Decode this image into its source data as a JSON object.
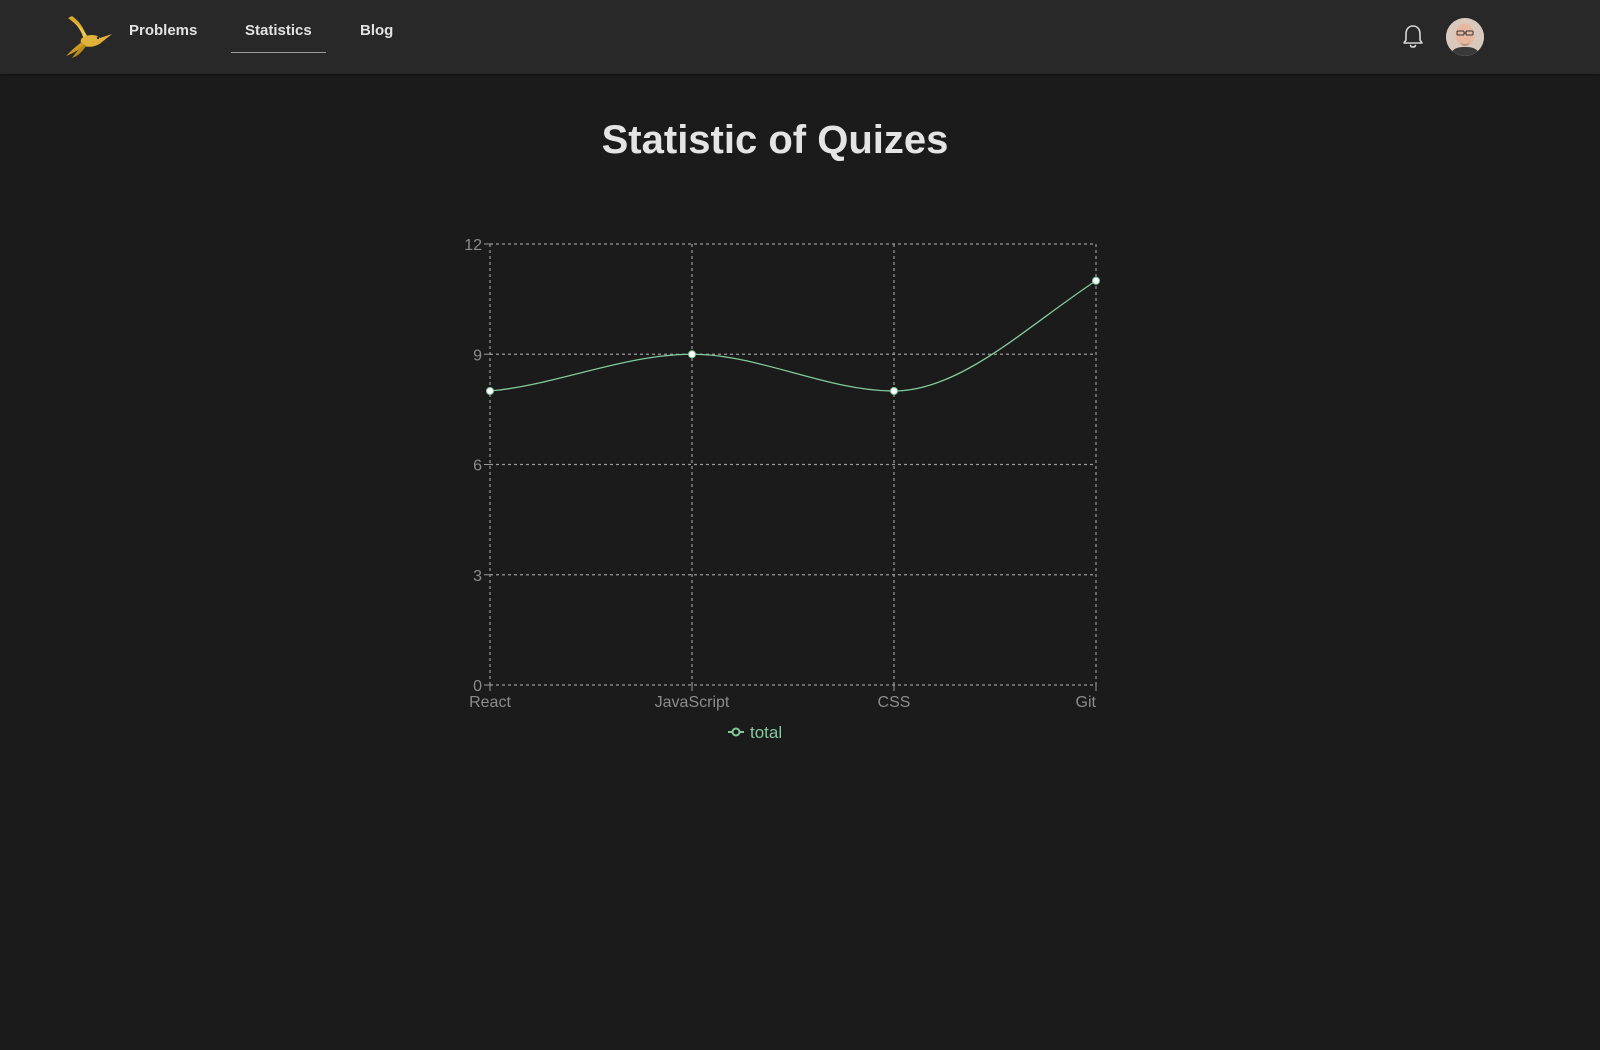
{
  "nav": {
    "links": [
      {
        "label": "Problems",
        "active": false
      },
      {
        "label": "Statistics",
        "active": true
      },
      {
        "label": "Blog",
        "active": false
      }
    ],
    "icons": {
      "logo": "hummingbird-logo",
      "notifications": "bell-icon",
      "profile": "user-avatar"
    }
  },
  "page": {
    "title": "Statistic of Quizes"
  },
  "colors": {
    "background": "#1b1b1b",
    "navbar": "#282828",
    "series": "#82ca9d",
    "grid": "#9a9a9a",
    "logo": "#d9a92a"
  },
  "chart_data": {
    "type": "line",
    "categories": [
      "React",
      "JavaScript",
      "CSS",
      "Git"
    ],
    "series": [
      {
        "name": "total",
        "values": [
          8,
          9,
          8,
          11
        ],
        "color": "#82ca9d"
      }
    ],
    "ylim": [
      0,
      12
    ],
    "yticks": [
      "0",
      "3",
      "6",
      "9",
      "12"
    ],
    "grid": true,
    "curve": "smooth",
    "legend": "bottom-center"
  }
}
